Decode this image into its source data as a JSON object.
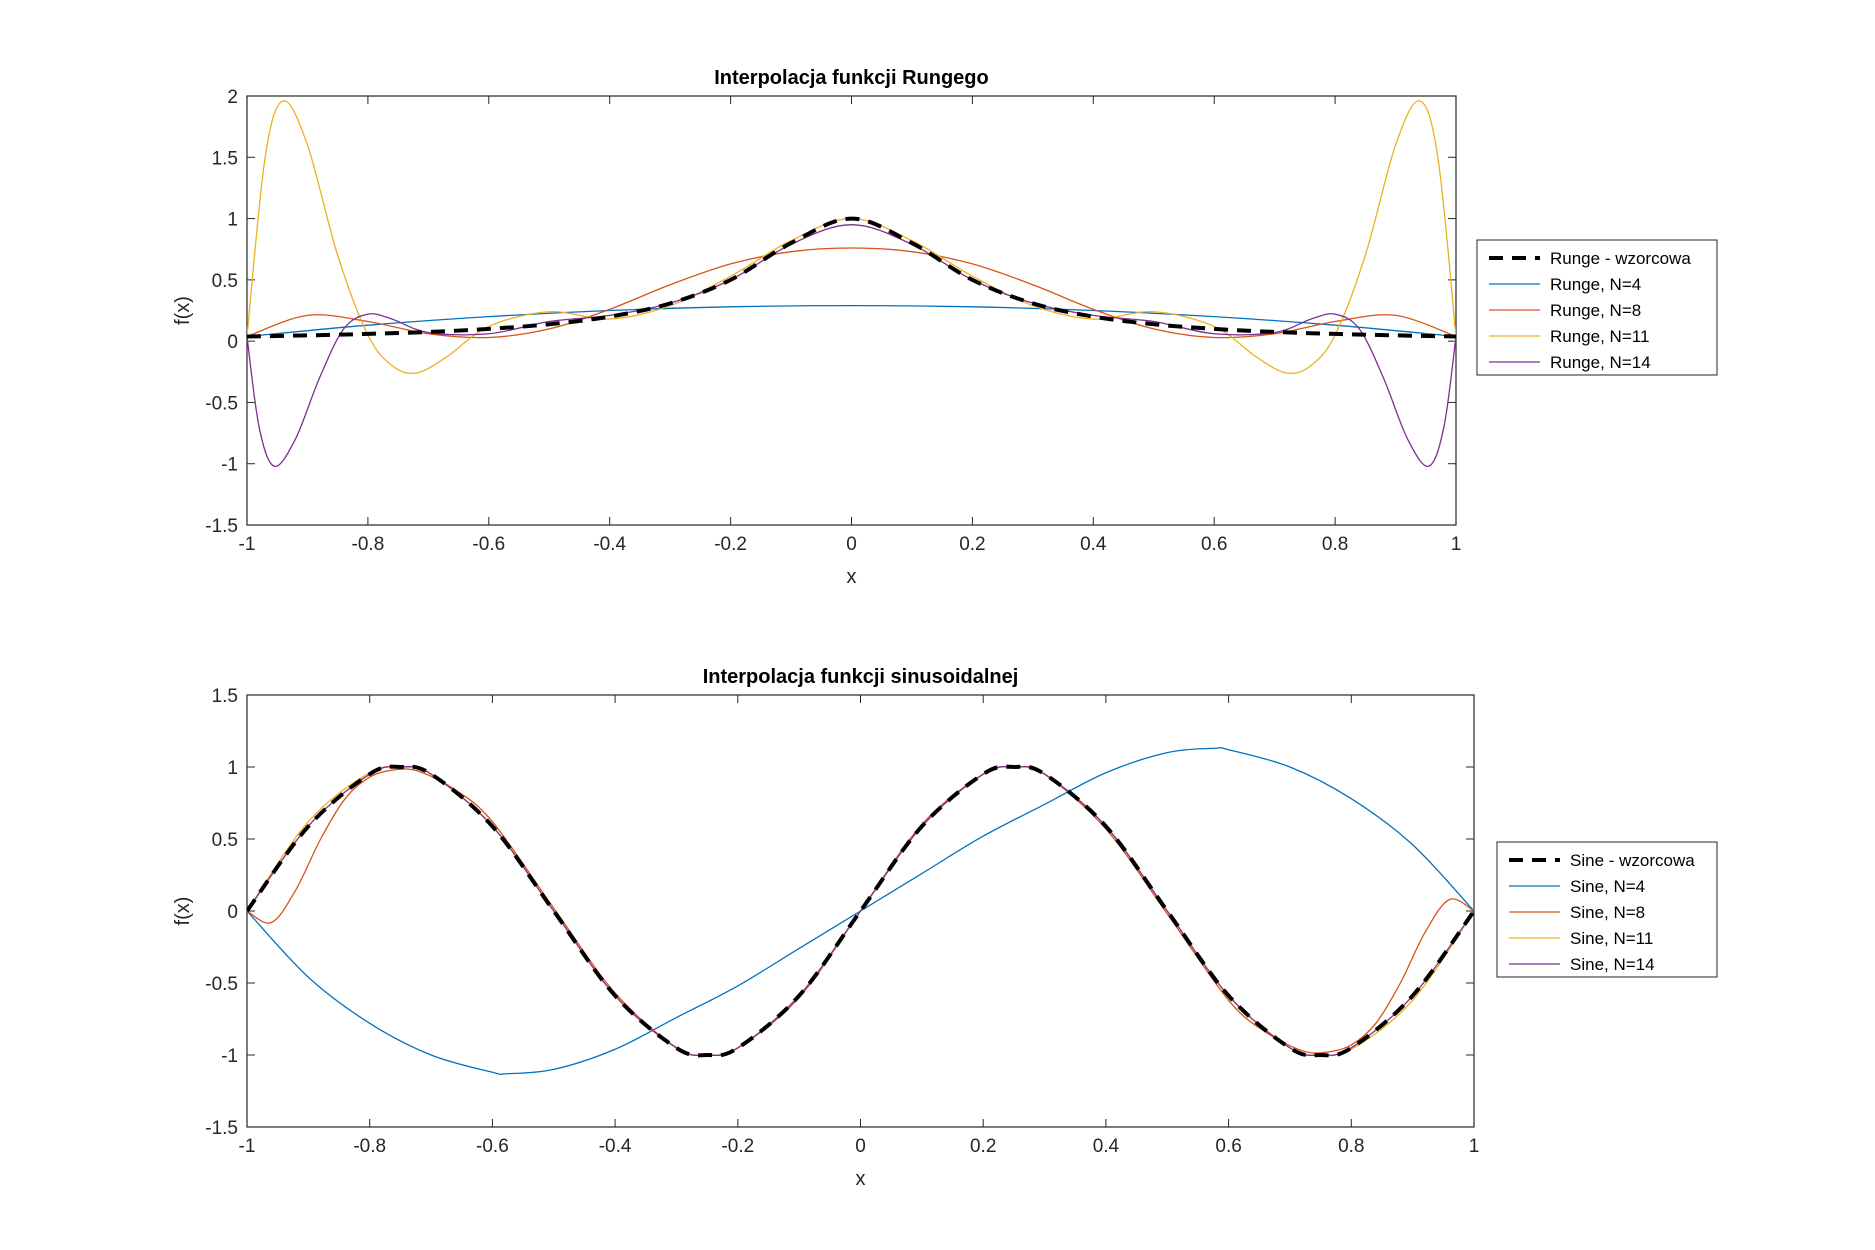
{
  "chart_data": [
    {
      "type": "line",
      "title": "Interpolacja funkcji Rungego",
      "xlabel": "x",
      "ylabel": "f(x)",
      "xlim": [
        -1,
        1
      ],
      "ylim": [
        -1.5,
        2
      ],
      "xticks": [
        "-1",
        "-0.8",
        "-0.6",
        "-0.4",
        "-0.2",
        "0",
        "0.2",
        "0.4",
        "0.6",
        "0.8",
        "1"
      ],
      "yticks": [
        "-1.5",
        "-1",
        "-0.5",
        "0",
        "0.5",
        "1",
        "1.5",
        "2"
      ],
      "grid": false,
      "legend_position": "outside-right",
      "series": [
        {
          "name": "Runge - wzorcowa",
          "color": "#000000",
          "dashed": true,
          "x": [
            -1,
            -0.9,
            -0.8,
            -0.7,
            -0.6,
            -0.5,
            -0.4,
            -0.3,
            -0.2,
            -0.1,
            0,
            0.1,
            0.2,
            0.3,
            0.4,
            0.5,
            0.6,
            0.7,
            0.8,
            0.9,
            1
          ],
          "y": [
            0.038,
            0.047,
            0.059,
            0.075,
            0.1,
            0.138,
            0.2,
            0.308,
            0.5,
            0.8,
            1,
            0.8,
            0.5,
            0.308,
            0.2,
            0.138,
            0.1,
            0.075,
            0.059,
            0.047,
            0.038
          ]
        },
        {
          "name": "Runge, N=4",
          "color": "#0072BD",
          "dashed": false,
          "x": [
            -1,
            -0.8,
            -0.6,
            -0.4,
            -0.2,
            0,
            0.2,
            0.4,
            0.6,
            0.8,
            1
          ],
          "y": [
            0.038,
            0.13,
            0.2,
            0.25,
            0.28,
            0.29,
            0.28,
            0.25,
            0.2,
            0.13,
            0.038
          ]
        },
        {
          "name": "Runge, N=8",
          "color": "#D95319",
          "dashed": false,
          "x": [
            -1,
            -0.9,
            -0.8,
            -0.7,
            -0.6,
            -0.5,
            -0.4,
            -0.3,
            -0.2,
            -0.1,
            0,
            0.1,
            0.2,
            0.3,
            0.4,
            0.5,
            0.6,
            0.7,
            0.8,
            0.9,
            1
          ],
          "y": [
            0.038,
            0.21,
            0.16,
            0.06,
            0.03,
            0.1,
            0.26,
            0.46,
            0.63,
            0.73,
            0.76,
            0.73,
            0.63,
            0.46,
            0.26,
            0.1,
            0.03,
            0.06,
            0.16,
            0.21,
            0.038
          ]
        },
        {
          "name": "Runge, N=11",
          "color": "#EDB120",
          "dashed": false,
          "x": [
            -1,
            -0.97,
            -0.94,
            -0.9,
            -0.85,
            -0.8,
            -0.76,
            -0.72,
            -0.67,
            -0.6,
            -0.5,
            -0.4,
            -0.3,
            -0.2,
            -0.1,
            0,
            0.1,
            0.2,
            0.3,
            0.4,
            0.5,
            0.6,
            0.67,
            0.72,
            0.76,
            0.8,
            0.85,
            0.9,
            0.94,
            0.97,
            1
          ],
          "y": [
            0.038,
            1.5,
            1.96,
            1.6,
            0.7,
            0.05,
            -0.2,
            -0.26,
            -0.13,
            0.12,
            0.24,
            0.18,
            0.29,
            0.53,
            0.82,
            1,
            0.82,
            0.53,
            0.29,
            0.18,
            0.24,
            0.12,
            -0.13,
            -0.26,
            -0.2,
            0.05,
            0.7,
            1.6,
            1.96,
            1.5,
            0.038
          ]
        },
        {
          "name": "Runge, N=14",
          "color": "#7E2F8E",
          "dashed": false,
          "x": [
            -1,
            -0.98,
            -0.955,
            -0.92,
            -0.88,
            -0.84,
            -0.8,
            -0.76,
            -0.7,
            -0.6,
            -0.5,
            -0.4,
            -0.3,
            -0.2,
            -0.1,
            0,
            0.1,
            0.2,
            0.3,
            0.4,
            0.5,
            0.6,
            0.7,
            0.76,
            0.8,
            0.84,
            0.88,
            0.92,
            0.955,
            0.98,
            1
          ],
          "y": [
            0.038,
            -0.7,
            -1.02,
            -0.8,
            -0.3,
            0.1,
            0.22,
            0.18,
            0.07,
            0.06,
            0.16,
            0.21,
            0.31,
            0.5,
            0.79,
            0.95,
            0.79,
            0.5,
            0.31,
            0.21,
            0.16,
            0.06,
            0.07,
            0.18,
            0.22,
            0.1,
            -0.3,
            -0.8,
            -1.02,
            -0.7,
            0.038
          ]
        }
      ]
    },
    {
      "type": "line",
      "title": "Interpolacja funkcji sinusoidalnej",
      "xlabel": "x",
      "ylabel": "f(x)",
      "xlim": [
        -1,
        1
      ],
      "ylim": [
        -1.5,
        1.5
      ],
      "xticks": [
        "-1",
        "-0.8",
        "-0.6",
        "-0.4",
        "-0.2",
        "0",
        "0.2",
        "0.4",
        "0.6",
        "0.8",
        "1"
      ],
      "yticks": [
        "-1.5",
        "-1",
        "-0.5",
        "0",
        "0.5",
        "1",
        "1.5"
      ],
      "grid": false,
      "legend_position": "outside-right",
      "series": [
        {
          "name": "Sine - wzorcowa",
          "color": "#000000",
          "dashed": true,
          "function": "sin(2*pi*x)",
          "x": [
            -1,
            -0.9,
            -0.8,
            -0.75,
            -0.7,
            -0.6,
            -0.5,
            -0.4,
            -0.3,
            -0.25,
            -0.2,
            -0.1,
            0,
            0.1,
            0.2,
            0.25,
            0.3,
            0.4,
            0.5,
            0.6,
            0.7,
            0.75,
            0.8,
            0.9,
            1
          ],
          "y": [
            0,
            0.588,
            0.951,
            1,
            0.951,
            0.588,
            0,
            -0.588,
            -0.951,
            -1,
            -0.951,
            -0.588,
            0,
            0.588,
            0.951,
            1,
            0.951,
            0.588,
            0,
            -0.588,
            -0.951,
            -1,
            -0.951,
            -0.588,
            0
          ]
        },
        {
          "name": "Sine, N=4",
          "color": "#0072BD",
          "dashed": false,
          "x": [
            -1,
            -0.9,
            -0.8,
            -0.7,
            -0.6,
            -0.577,
            -0.5,
            -0.4,
            -0.3,
            -0.2,
            -0.1,
            0,
            0.1,
            0.2,
            0.3,
            0.4,
            0.5,
            0.577,
            0.6,
            0.7,
            0.8,
            0.9,
            1
          ],
          "y": [
            0,
            -0.46,
            -0.78,
            -1.0,
            -1.12,
            -1.13,
            -1.1,
            -0.96,
            -0.74,
            -0.52,
            -0.26,
            0,
            0.26,
            0.52,
            0.74,
            0.96,
            1.1,
            1.13,
            1.12,
            1.0,
            0.78,
            0.46,
            0
          ]
        },
        {
          "name": "Sine, N=8",
          "color": "#D95319",
          "dashed": false,
          "x": [
            -1,
            -0.96,
            -0.92,
            -0.88,
            -0.84,
            -0.8,
            -0.76,
            -0.72,
            -0.66,
            -0.6,
            -0.5,
            -0.4,
            -0.3,
            -0.25,
            -0.2,
            -0.1,
            0,
            0.1,
            0.2,
            0.25,
            0.3,
            0.4,
            0.5,
            0.6,
            0.66,
            0.72,
            0.76,
            0.8,
            0.84,
            0.88,
            0.92,
            0.96,
            1
          ],
          "y": [
            0,
            -0.08,
            0.15,
            0.5,
            0.78,
            0.93,
            0.98,
            0.97,
            0.84,
            0.62,
            0.02,
            -0.57,
            -0.95,
            -1.0,
            -0.95,
            -0.6,
            0,
            0.6,
            0.95,
            1.0,
            0.95,
            0.57,
            -0.02,
            -0.62,
            -0.84,
            -0.97,
            -0.98,
            -0.93,
            -0.78,
            -0.5,
            -0.15,
            0.08,
            0
          ]
        },
        {
          "name": "Sine, N=11",
          "color": "#EDB120",
          "dashed": false,
          "x": [
            -1,
            -0.9,
            -0.8,
            -0.74,
            -0.7,
            -0.6,
            -0.5,
            -0.4,
            -0.3,
            -0.25,
            -0.2,
            -0.1,
            0,
            0.1,
            0.2,
            0.25,
            0.3,
            0.4,
            0.5,
            0.6,
            0.7,
            0.74,
            0.8,
            0.9,
            1
          ],
          "y": [
            0,
            0.62,
            0.96,
            1.0,
            0.95,
            0.59,
            0,
            -0.588,
            -0.951,
            -1,
            -0.951,
            -0.588,
            0,
            0.588,
            0.951,
            1,
            0.951,
            0.588,
            0,
            -0.59,
            -0.95,
            -1.0,
            -0.96,
            -0.62,
            0
          ]
        },
        {
          "name": "Sine, N=14",
          "color": "#7E2F8E",
          "dashed": false,
          "x": [
            -1,
            -0.9,
            -0.8,
            -0.75,
            -0.7,
            -0.6,
            -0.5,
            -0.4,
            -0.3,
            -0.25,
            -0.2,
            -0.1,
            0,
            0.1,
            0.2,
            0.25,
            0.3,
            0.4,
            0.5,
            0.6,
            0.7,
            0.75,
            0.8,
            0.9,
            1
          ],
          "y": [
            0,
            0.59,
            0.95,
            1,
            0.951,
            0.588,
            0,
            -0.588,
            -0.951,
            -1,
            -0.951,
            -0.588,
            0,
            0.588,
            0.951,
            1,
            0.951,
            0.588,
            0,
            -0.588,
            -0.951,
            -1,
            -0.95,
            -0.59,
            0
          ]
        }
      ]
    }
  ]
}
